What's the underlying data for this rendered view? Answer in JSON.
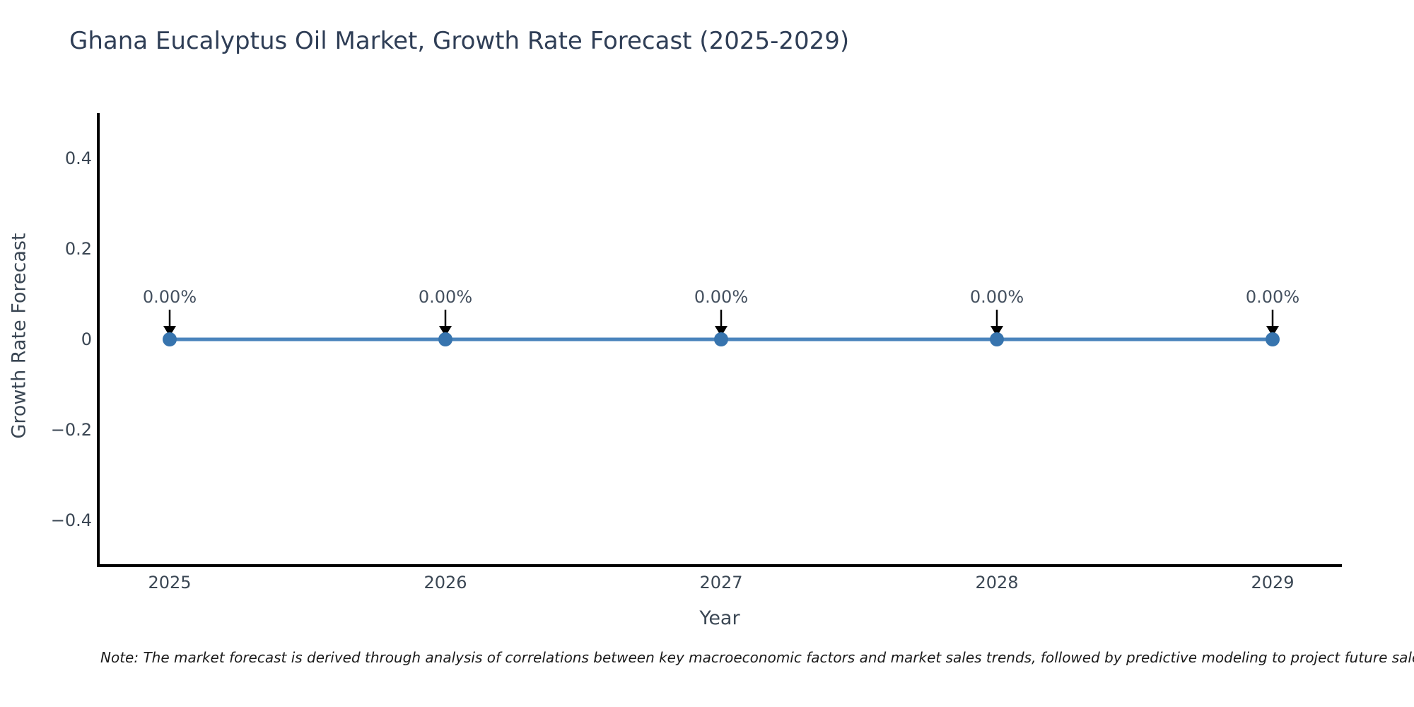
{
  "chart_data": {
    "type": "line",
    "title": "Ghana Eucalyptus Oil Market, Growth Rate Forecast (2025-2029)",
    "xlabel": "Year",
    "ylabel": "Growth Rate Forecast",
    "categories": [
      "2025",
      "2026",
      "2027",
      "2028",
      "2029"
    ],
    "values": [
      0,
      0,
      0,
      0,
      0
    ],
    "point_labels": [
      "0.00%",
      "0.00%",
      "0.00%",
      "0.00%",
      "0.00%"
    ],
    "y_ticks": [
      "0.4",
      "0.2",
      "0",
      "−0.2",
      "−0.4"
    ],
    "y_tick_values": [
      0.4,
      0.2,
      0,
      -0.2,
      -0.4
    ],
    "ylim": [
      -0.5,
      0.5
    ],
    "grid": false,
    "legend_position": "none",
    "line_color": "#4a84bc",
    "marker_color": "#3774ae",
    "annotation_arrow_color": "#000000",
    "axis_line_color": "#000000",
    "title_color": "#2f3e56",
    "text_color": "#3b4754"
  },
  "note": "Note: The market forecast is derived through analysis of correlations between key macroeconomic factors and market sales trends, followed by predictive modeling to project future sales"
}
